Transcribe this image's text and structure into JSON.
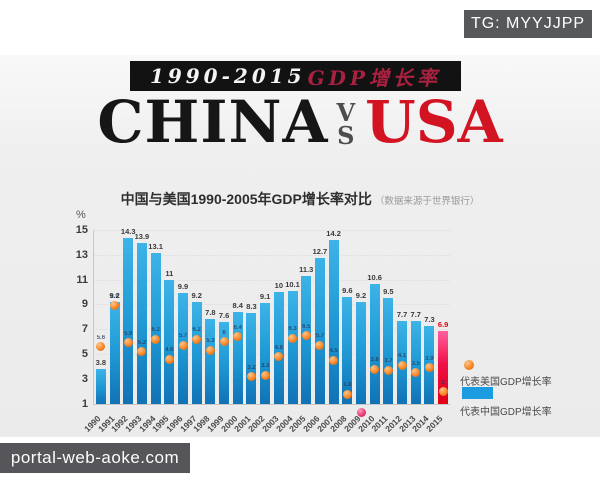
{
  "badge": {
    "label": "TG: MYYJJPP"
  },
  "banner": {
    "years": "1990-2015",
    "title_cn": "GDP增长率"
  },
  "headline": {
    "left": "CHINA",
    "vs_top": "V",
    "vs_bottom": "S",
    "right": "USA"
  },
  "chart": {
    "title": "中国与美国1990-2005年GDP增长率对比",
    "subtitle": "（数据来源于世界银行）",
    "unit": "%"
  },
  "legend": {
    "usa_label": "代表美国GDP增长率",
    "china_label": "代表中国GDP增长率"
  },
  "watermark": {
    "label": "portal-web-aoke.com"
  },
  "colors": {
    "badge_bg": "#57585a",
    "banner_bg": "#121212",
    "banner_red": "#a82140",
    "usa_red": "#d11322",
    "china_bar_light": "#3cb4e8",
    "china_bar_mid": "#1e96d2",
    "china_bar_dark": "#1172b4",
    "highlight_bar_light": "#ff5f9e",
    "highlight_bar_mid": "#ef1048",
    "highlight_bar_dark": "#e00016",
    "usa_dot": "#f58220",
    "usa_dot_light": "#ffc487",
    "usa_dot_dark": "#cf5a17",
    "neg_dot": "#e8336d",
    "neg_dot_light": "#ff9ec0",
    "neg_dot_dark": "#b70b4a",
    "legend_swatch": "#1b9ce0",
    "highlight_label": "#e60012"
  },
  "chart_data": {
    "type": "bar",
    "title": "中国与美国1990-2005年GDP增长率对比",
    "subtitle": "（数据来源于世界银行）",
    "xlabel": "",
    "ylabel": "%",
    "ylim": [
      1,
      15
    ],
    "y_ticks": [
      15,
      13,
      11,
      9,
      7,
      5,
      3,
      1
    ],
    "grid": true,
    "legend_position": "right",
    "categories": [
      "1990",
      "1991",
      "1992",
      "1993",
      "1994",
      "1995",
      "1996",
      "1997",
      "1998",
      "1999",
      "2000",
      "2001",
      "2002",
      "2003",
      "2004",
      "2005",
      "2006",
      "2007",
      "2008",
      "2009",
      "2010",
      "2011",
      "2012",
      "2013",
      "2014",
      "2015"
    ],
    "series": [
      {
        "name": "代表中国GDP增长率",
        "type": "bar",
        "values": [
          3.8,
          9.2,
          14.3,
          13.9,
          13.1,
          11,
          9.9,
          9.2,
          7.8,
          7.6,
          8.4,
          8.3,
          9.1,
          10,
          10.1,
          11.3,
          12.7,
          14.2,
          9.6,
          9.2,
          10.6,
          9.5,
          7.7,
          7.7,
          7.3,
          6.9
        ],
        "highlight_index": 25
      },
      {
        "name": "代表美国GDP增长率",
        "type": "scatter",
        "values": [
          5.6,
          8.9,
          5.9,
          5.2,
          6.2,
          4.6,
          5.7,
          6.2,
          5.3,
          6.0,
          6.4,
          3.2,
          3.3,
          4.8,
          6.3,
          6.5,
          5.7,
          4.5,
          1.8,
          0.3,
          3.8,
          3.7,
          4.1,
          3.5,
          3.9,
          2.0
        ],
        "highlight_index": 19
      }
    ]
  }
}
